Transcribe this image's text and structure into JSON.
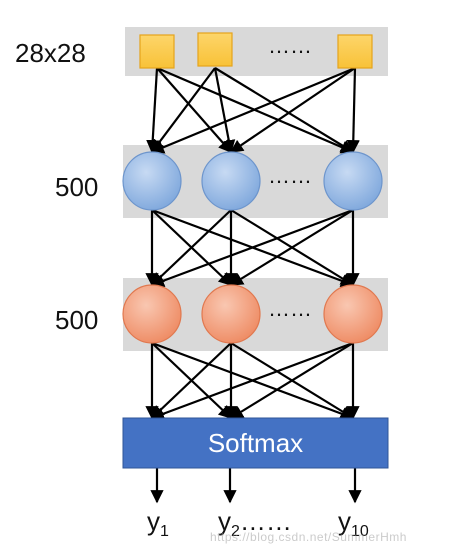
{
  "layers": [
    {
      "label": "28x28",
      "node_shape": "square",
      "color": "#fbc94c",
      "stroke": "#e6a41c"
    },
    {
      "label": "500",
      "node_shape": "circle",
      "color": "#8fb4e3",
      "stroke": "#6d95cc"
    },
    {
      "label": "500",
      "node_shape": "circle",
      "color": "#f2a07f",
      "stroke": "#e0784f"
    }
  ],
  "ellipsis": "……",
  "softmax": {
    "label": "Softmax",
    "color": "#4472c4"
  },
  "outputs": [
    {
      "base": "y",
      "sub": "1",
      "suffix": ""
    },
    {
      "base": "y",
      "sub": "2",
      "suffix": "……"
    },
    {
      "base": "y",
      "sub": "10",
      "suffix": ""
    }
  ],
  "watermark": "https://blog.csdn.net/SummerHmh",
  "colors": {
    "band": "#d9d9d9",
    "arrow": "#000000"
  }
}
